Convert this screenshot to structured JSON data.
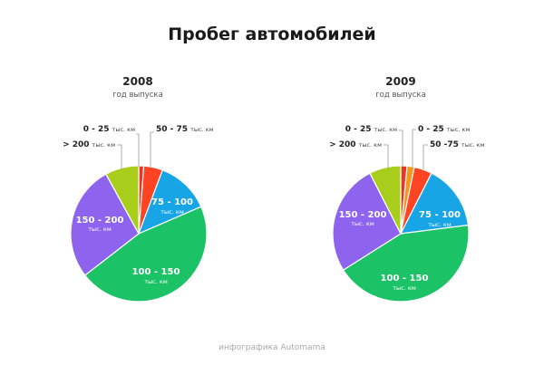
{
  "title": "Пробег автомобилей",
  "credit": "инфографика Automama",
  "unit": "тыс. км",
  "colors": {
    "r0_25": "#e8362a",
    "r0_25b": "#f7941d",
    "r25_50": "#ee3b2e",
    "r50_75": "#ff4423",
    "r75_100": "#17a5e6",
    "r100_150": "#1bc266",
    "r150_200": "#8e64ee",
    "r200plus": "#a8cd1b"
  },
  "chart_data": [
    {
      "type": "pie",
      "title": "2008",
      "subtitle": "год выпуска",
      "slices": [
        {
          "label": "0 - 25",
          "unit": "тыс. км",
          "value": 1.2,
          "color": "#e8362a"
        },
        {
          "label": "50 - 75",
          "unit": "тыс. км",
          "value": 4.5,
          "color": "#ff4423"
        },
        {
          "label": "75 - 100",
          "unit": "тыс. км",
          "value": 12.8,
          "color": "#17a5e6"
        },
        {
          "label": "100 - 150",
          "unit": "тыс. км",
          "value": 46.0,
          "color": "#1bc266"
        },
        {
          "label": "150 - 200",
          "unit": "тыс. км",
          "value": 27.5,
          "color": "#8e64ee"
        },
        {
          "label": "> 200",
          "unit": "тыс. км",
          "value": 8.0,
          "color": "#a8cd1b"
        }
      ]
    },
    {
      "type": "pie",
      "title": "2009",
      "subtitle": "год выпуска",
      "slices": [
        {
          "label": "0 - 25",
          "unit": "тыс. км",
          "value": 1.5,
          "color": "#e8362a"
        },
        {
          "label": "0 - 25",
          "unit": "тыс. км",
          "value": 1.7,
          "color": "#f7941d"
        },
        {
          "label": "50 -75",
          "unit": "тыс. км",
          "value": 4.3,
          "color": "#ff4423"
        },
        {
          "label": "75 - 100",
          "unit": "тыс. км",
          "value": 15.5,
          "color": "#17a5e6"
        },
        {
          "label": "100 - 150",
          "unit": "тыс. км",
          "value": 43.0,
          "color": "#1bc266"
        },
        {
          "label": "150 - 200",
          "unit": "тыс. км",
          "value": 26.5,
          "color": "#8e64ee"
        },
        {
          "label": "> 200",
          "unit": "тыс. км",
          "value": 7.5,
          "color": "#a8cd1b"
        }
      ]
    }
  ]
}
